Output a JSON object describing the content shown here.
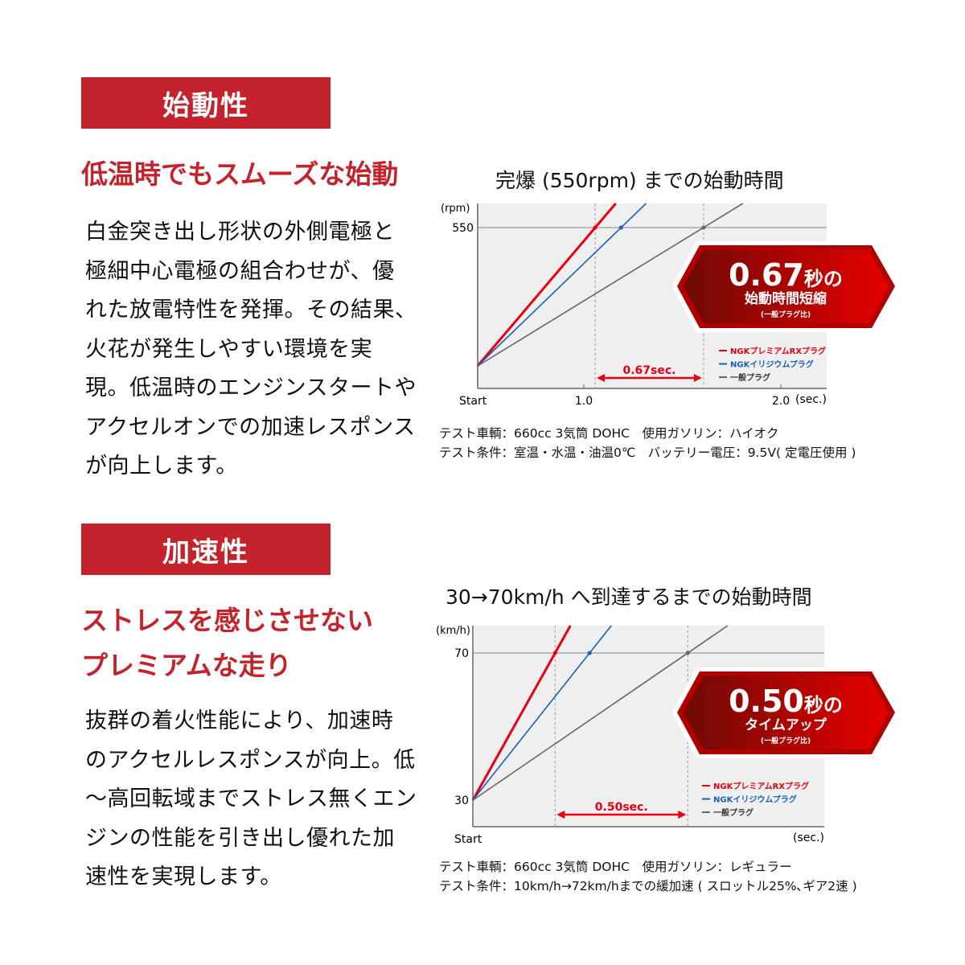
{
  "section1": {
    "label": "始動性",
    "headline": [
      "低温時でもスムーズな始動"
    ],
    "body": [
      "白金突き出し形状の外側電極と",
      "極細中心電極の組合わせが、優",
      "れた放電特性を発揮。その結果、",
      "火花が発生しやすい環境を実",
      "現。低温時のエンジンスタートや",
      "アクセルオンでの加速レスポンス",
      "が向上します。"
    ],
    "notes": [
      "テスト車輌：660cc 3気筒 DOHC　使用ガソリン：ハイオク",
      "テスト条件：室温・水温・油温0℃　バッテリー電圧：9.5V( 定電圧使用 )"
    ]
  },
  "section2": {
    "label": "加速性",
    "headline": [
      "ストレスを感じさせない",
      "プレミアムな走り"
    ],
    "body": [
      "抜群の着火性能により、加速時",
      "のアクセルレスポンスが向上。低",
      "～高回転域までストレス無くエン",
      "ジンの性能を引き出し優れた加",
      "速性を実現します。"
    ],
    "notes": [
      "テスト車輌：660cc 3気筒 DOHC　使用ガソリン：レギュラー",
      "テスト条件：10km/h→72km/hまでの緩加速 ( スロットル25%､ギア2速 )"
    ]
  },
  "colors": {
    "accent": "#c4232b",
    "premium": "#e60012",
    "iridium": "#1a5fb4",
    "standard": "#666666",
    "plot_bg": "#efefef"
  },
  "chart_data": [
    {
      "type": "line",
      "title": "完爆 (550rpm) までの始動時間",
      "ylabel": "(rpm)",
      "xlabel": "(sec.)",
      "x_start_label": "Start",
      "xticks": [
        "1.0",
        "2.0"
      ],
      "yticks": [
        "550"
      ],
      "target": 550,
      "series": [
        {
          "name": "NGKプレミアムRXプラグ",
          "time_to_target": 1.17
        },
        {
          "name": "NGKイリジウムプラグ",
          "time_to_target": 1.33
        },
        {
          "name": "一般プラグ",
          "time_to_target": 1.84
        }
      ],
      "gap_label": "0.67sec.",
      "badge": {
        "big": "0.67",
        "unit": "秒の",
        "sub": "始動時間短縮",
        "note": "(一般プラグ比)"
      },
      "grid": false,
      "legend": "bottom-right"
    },
    {
      "type": "line",
      "title": "30→70km/h へ到達するまでの始動時間",
      "ylabel": "(km/h)",
      "xlabel": "(sec.)",
      "x_start_label": "Start",
      "yticks": [
        "70",
        "30"
      ],
      "target": 70,
      "start_value": 30,
      "series": [
        {
          "name": "NGKプレミアムRXプラグ",
          "time_to_target": 0.31
        },
        {
          "name": "NGKイリジウムプラグ",
          "time_to_target": 0.44
        },
        {
          "name": "一般プラグ",
          "time_to_target": 0.81
        }
      ],
      "gap_label": "0.50sec.",
      "badge": {
        "big": "0.50",
        "unit": "秒の",
        "sub": "タイムアップ",
        "note": "(一般プラグ比)"
      },
      "grid": false,
      "legend": "bottom-right"
    }
  ]
}
